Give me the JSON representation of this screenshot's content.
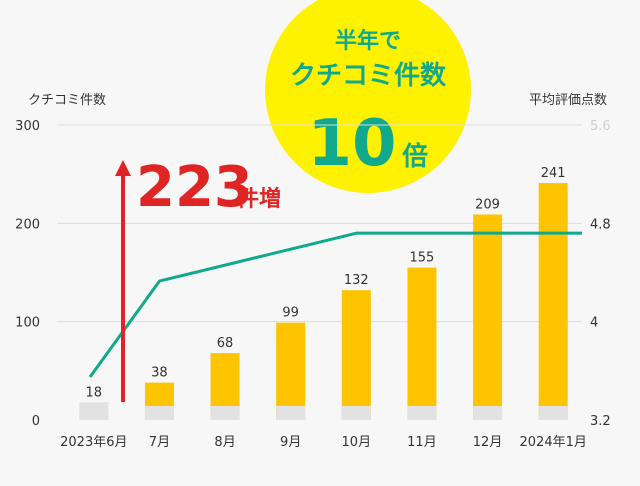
{
  "chart_data": {
    "type": "bar+line",
    "left_axis_title": "クチコミ件数",
    "right_axis_title": "平均評価点数",
    "categories": [
      "2023年6月",
      "7月",
      "8月",
      "9月",
      "10月",
      "11月",
      "12月",
      "2024年1月"
    ],
    "bar_values": [
      18,
      38,
      68,
      99,
      132,
      155,
      209,
      241
    ],
    "bar_labels": [
      "18",
      "38",
      "68",
      "99",
      "132",
      "155",
      "209",
      "241"
    ],
    "line_values": [
      3.55,
      4.33,
      4.46,
      4.59,
      4.72,
      4.72,
      4.72,
      4.72
    ],
    "left_ticks": [
      "0",
      "100",
      "200",
      "300"
    ],
    "left_range": [
      0,
      300
    ],
    "right_ticks": [
      "3.2",
      "4",
      "4.8",
      "5.6"
    ],
    "right_range": [
      3.2,
      5.6
    ],
    "grid": true,
    "colors": {
      "bar": "#ffc400",
      "bar_base": "#e2e2e2",
      "first_bar": "#e2e2e2",
      "line": "#10a98b",
      "arrow": "#e02424",
      "badge": "#fff200",
      "badge_text": "#10a98b",
      "grid": "#dddddd"
    },
    "annotation": {
      "number": "223",
      "unit": "件増"
    },
    "badge": {
      "line1": "半年で",
      "line2": "クチコミ件数",
      "number": "10",
      "suffix": "倍"
    }
  }
}
